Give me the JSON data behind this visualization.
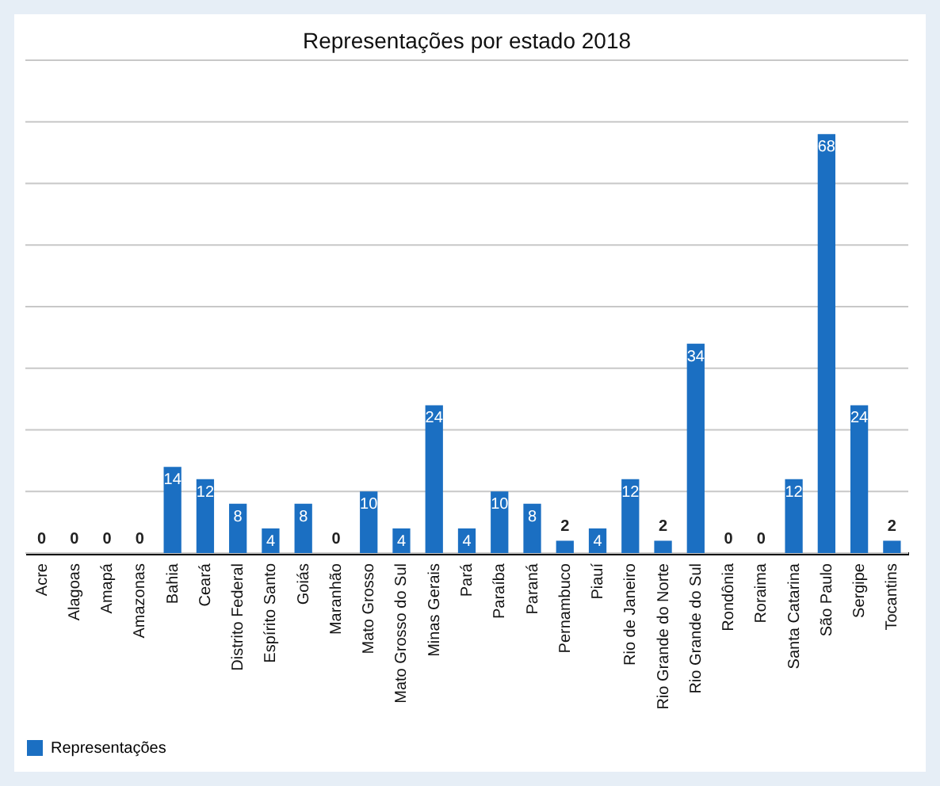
{
  "chart_data": {
    "type": "bar",
    "title": "Representações por estado 2018",
    "categories": [
      "Acre",
      "Alagoas",
      "Amapá",
      "Amazonas",
      "Bahia",
      "Ceará",
      "Distrito Federal",
      "Espírito Santo",
      "Goiás",
      "Maranhão",
      "Mato Grosso",
      "Mato Grosso do Sul",
      "Minas Gerais",
      "Pará",
      "Paraíba",
      "Paraná",
      "Pernambuco",
      "Piauí",
      "Rio de Janeiro",
      "Rio Grande do Norte",
      "Rio Grande do Sul",
      "Rondônia",
      "Roraima",
      "Santa Catarina",
      "São Paulo",
      "Sergipe",
      "Tocantins"
    ],
    "series": [
      {
        "name": "Representações",
        "color": "#1b6fc2",
        "values": [
          0,
          0,
          0,
          0,
          14,
          12,
          8,
          4,
          8,
          0,
          10,
          4,
          24,
          4,
          10,
          8,
          2,
          4,
          12,
          2,
          34,
          0,
          0,
          12,
          68,
          24,
          2
        ]
      }
    ],
    "ylim": [
      0,
      80
    ],
    "yticks": [
      {
        "value": 0,
        "label": null
      },
      {
        "value": 10,
        "label": null
      },
      {
        "value": 20,
        "label": null
      },
      {
        "value": 30,
        "label": null
      },
      {
        "value": 40,
        "label": null
      },
      {
        "value": 50,
        "label": null
      },
      {
        "value": 60,
        "label": null
      },
      {
        "value": 70,
        "label": null
      },
      {
        "value": 80,
        "label": null
      }
    ],
    "tick_labels": "x",
    "grid": "y",
    "legend": "bottom",
    "data_labels": true
  }
}
